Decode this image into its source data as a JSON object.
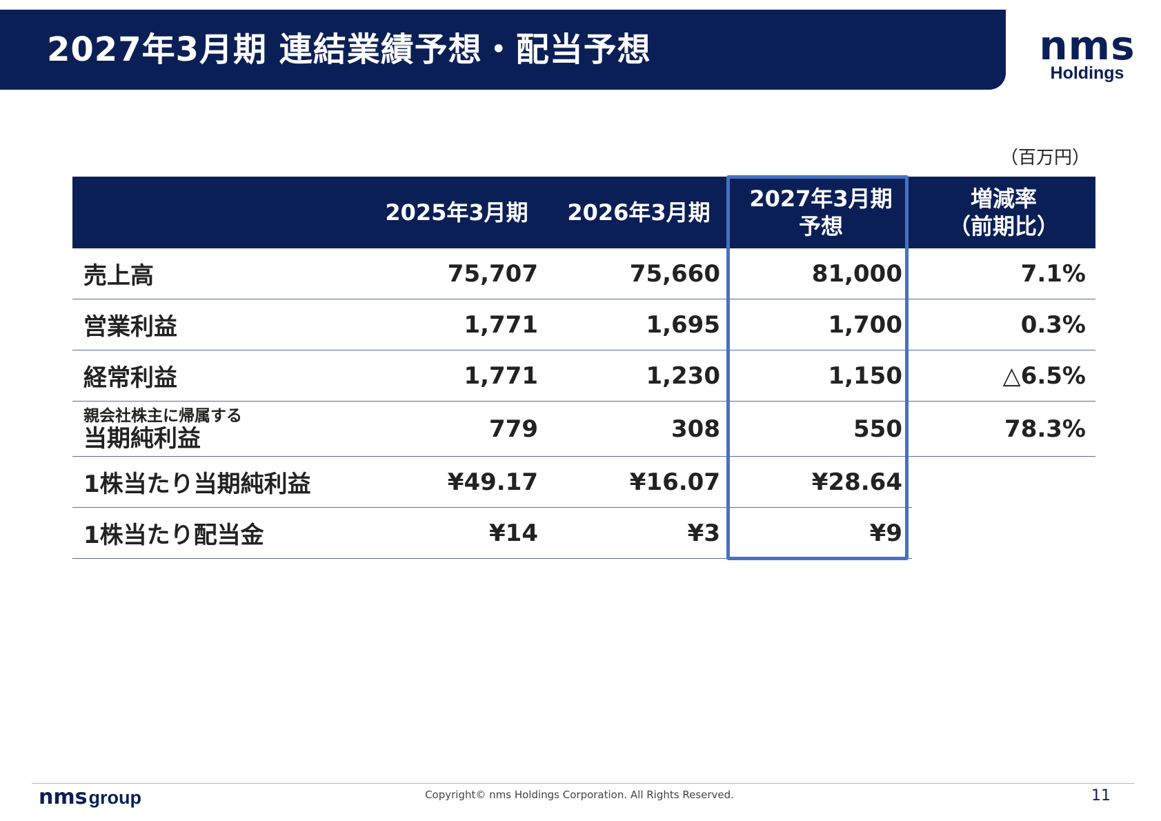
{
  "title": "2027年3月期 連結業績予想・配当予想",
  "logo": {
    "mark": "nms",
    "sub": "Holdings"
  },
  "unit": "（百万円）",
  "table": {
    "headers": [
      "",
      "2025年3月期",
      "2026年3月期",
      "2027年3月期",
      "増減率"
    ],
    "header_sub": {
      "forecast": "予想",
      "rate": "（前期比）"
    },
    "rows": [
      {
        "label": "売上高",
        "fy2025": "75,707",
        "fy2026": "75,660",
        "fy2027": "81,000",
        "rate": "7.1%"
      },
      {
        "label": "営業利益",
        "fy2025": "1,771",
        "fy2026": "1,695",
        "fy2027": "1,700",
        "rate": "0.3%"
      },
      {
        "label": "経常利益",
        "fy2025": "1,771",
        "fy2026": "1,230",
        "fy2027": "1,150",
        "rate": "△6.5%"
      },
      {
        "label_small": "親会社株主に帰属する",
        "label": "当期純利益",
        "fy2025": "779",
        "fy2026": "308",
        "fy2027": "550",
        "rate": "78.3%"
      },
      {
        "label": "1株当たり当期純利益",
        "fy2025": "¥49.17",
        "fy2026": "¥16.07",
        "fy2027": "¥28.64",
        "rate": ""
      },
      {
        "label": "1株当たり配当金",
        "fy2025": "¥14",
        "fy2026": "¥3",
        "fy2027": "¥9",
        "rate": ""
      }
    ]
  },
  "highlight_color": "#4472c4",
  "brand_color": "#0b1f57",
  "footer": {
    "logo_mark": "nms",
    "logo_word": "group",
    "copyright": "Copyright© nms Holdings Corporation. All Rights Reserved.",
    "page_number": "11"
  }
}
